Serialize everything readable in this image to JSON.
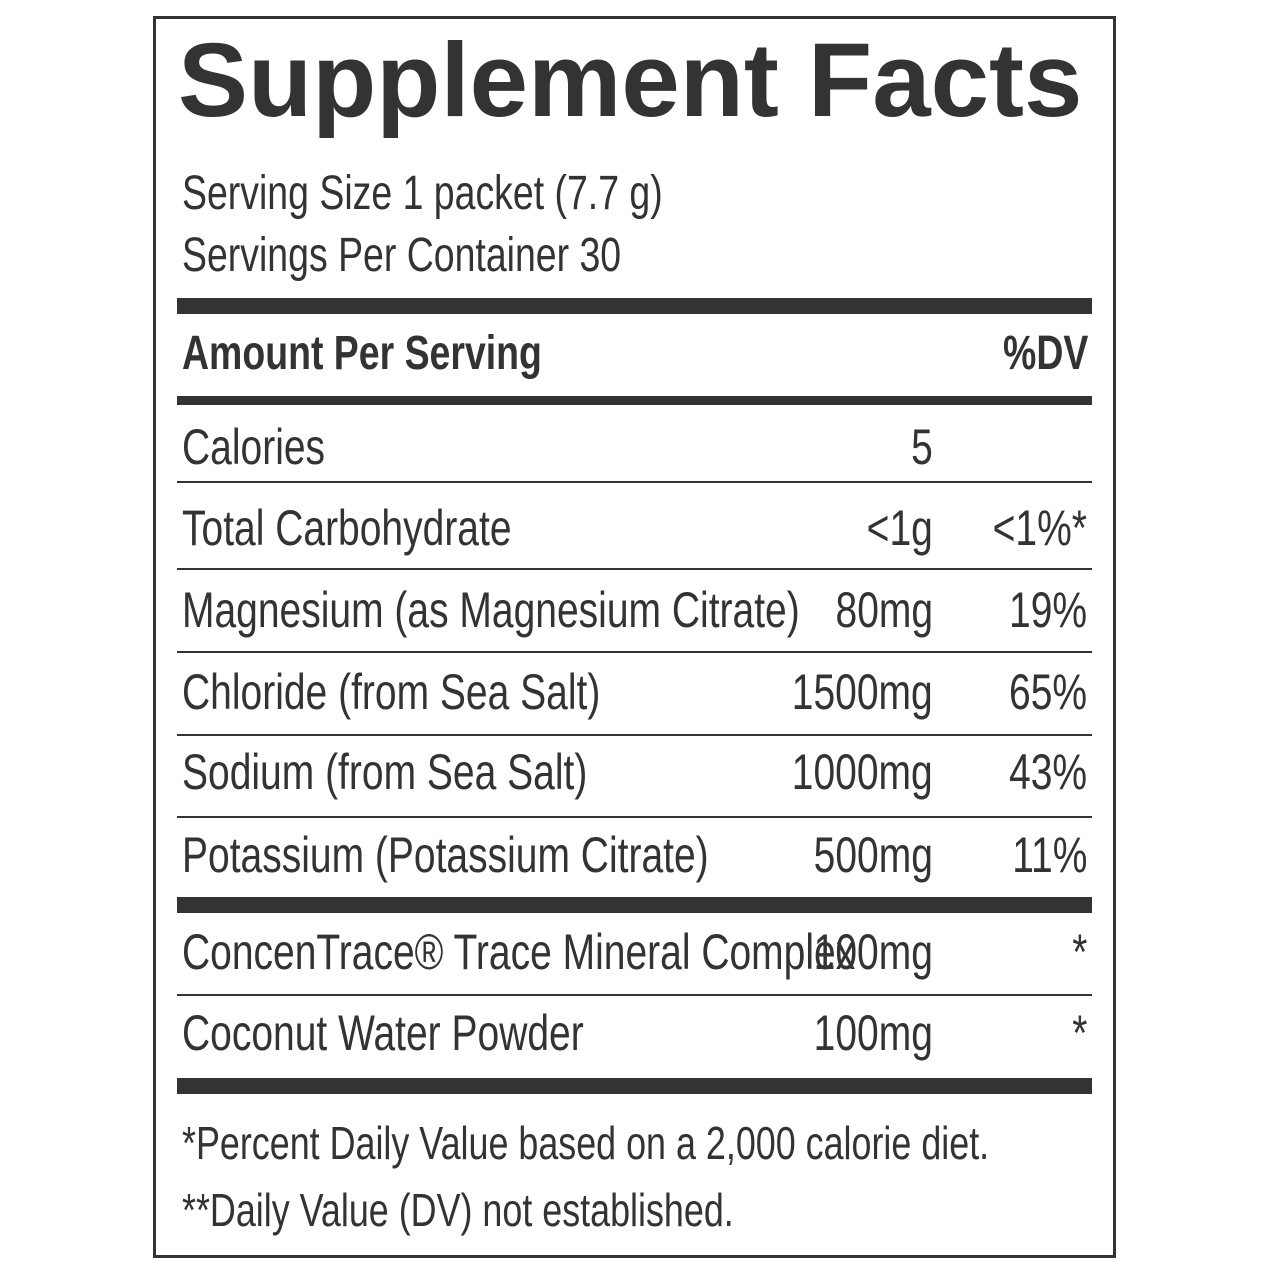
{
  "header": {
    "title": "Supplement Facts",
    "serving_size": "Serving Size 1 packet (7.7 g)",
    "servings_per_container": "Servings Per Container 30"
  },
  "columns": {
    "amount_header": "Amount Per Serving",
    "dv_header": "%DV"
  },
  "rows": [
    {
      "name": "Calories",
      "amount": "5"
    },
    {
      "name": "Total Carbohydrate",
      "amount": "<1g",
      "dv": "<1%*"
    },
    {
      "name": "Magnesium (as Magnesium Citrate)",
      "amount": "80mg",
      "dv": "19%"
    },
    {
      "name": "Chloride (from Sea Salt)",
      "amount": "1500mg",
      "dv": "65%"
    },
    {
      "name": "Sodium (from Sea Salt)",
      "amount": "1000mg",
      "dv": "43%"
    },
    {
      "name": "Potassium (Potassium Citrate)",
      "amount": "500mg",
      "dv": "11%"
    },
    {
      "name": "ConcenTrace® Trace Mineral Complex",
      "amount": "100mg",
      "dv": "*"
    },
    {
      "name": "Coconut Water Powder",
      "amount": "100mg",
      "dv": "*"
    }
  ],
  "footnotes": [
    "*Percent Daily Value based on a 2,000 calorie diet.",
    "**Daily Value (DV) not established."
  ]
}
